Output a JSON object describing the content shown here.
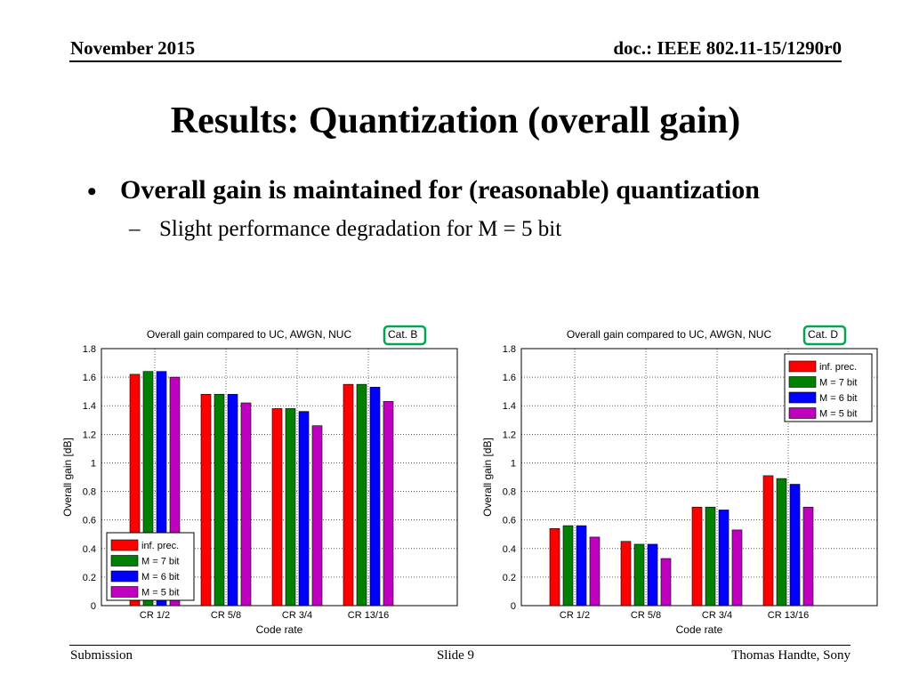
{
  "header": {
    "date": "November 2015",
    "doc": "doc.: IEEE 802.11-15/1290r0"
  },
  "slide": {
    "title": "Results: Quantization (overall gain)",
    "bullet_marker": "•",
    "bullet": "Overall gain is maintained for (reasonable) quantization",
    "sub_marker": "–",
    "sub_bullet": "Slight performance degradation for M = 5 bit"
  },
  "footer": {
    "left": "Submission",
    "center": "Slide 9",
    "right": "Thomas Handte, Sony"
  },
  "colors": {
    "inf": "#ff0000",
    "m7": "#008000",
    "m6": "#0000ff",
    "m5": "#bf00bf",
    "highlight": "#00a651"
  },
  "chart_data": [
    {
      "type": "bar",
      "title": "Overall gain compared to UC, AWGN, NUC",
      "title_highlight": "Cat. B",
      "xlabel": "Code rate",
      "ylabel": "Overall gain [dB]",
      "ylim": [
        0,
        1.8
      ],
      "yticks": [
        "0",
        "0.2",
        "0.4",
        "0.6",
        "0.8",
        "1",
        "1.2",
        "1.4",
        "1.6",
        "1.8"
      ],
      "categories": [
        "CR 1/2",
        "CR 5/8",
        "CR 3/4",
        "CR 13/16"
      ],
      "grid": true,
      "legend_position": "bottom-left",
      "series": [
        {
          "name": "inf. prec.",
          "color": "#ff0000",
          "values": [
            1.62,
            1.48,
            1.38,
            1.55
          ]
        },
        {
          "name": "M = 7 bit",
          "color": "#008000",
          "values": [
            1.64,
            1.48,
            1.38,
            1.55
          ]
        },
        {
          "name": "M = 6 bit",
          "color": "#0000ff",
          "values": [
            1.64,
            1.48,
            1.36,
            1.53
          ]
        },
        {
          "name": "M = 5 bit",
          "color": "#bf00bf",
          "values": [
            1.6,
            1.42,
            1.26,
            1.43
          ]
        }
      ]
    },
    {
      "type": "bar",
      "title": "Overall gain compared to UC, AWGN, NUC",
      "title_highlight": "Cat. D",
      "xlabel": "Code rate",
      "ylabel": "Overall gain [dB]",
      "ylim": [
        0,
        1.8
      ],
      "yticks": [
        "0",
        "0.2",
        "0.4",
        "0.6",
        "0.8",
        "1",
        "1.2",
        "1.4",
        "1.6",
        "1.8"
      ],
      "categories": [
        "CR 1/2",
        "CR 5/8",
        "CR 3/4",
        "CR 13/16"
      ],
      "grid": true,
      "legend_position": "top-right",
      "series": [
        {
          "name": "inf. prec.",
          "color": "#ff0000",
          "values": [
            0.54,
            0.45,
            0.69,
            0.91
          ]
        },
        {
          "name": "M = 7 bit",
          "color": "#008000",
          "values": [
            0.56,
            0.43,
            0.69,
            0.89
          ]
        },
        {
          "name": "M = 6 bit",
          "color": "#0000ff",
          "values": [
            0.56,
            0.43,
            0.67,
            0.85
          ]
        },
        {
          "name": "M = 5 bit",
          "color": "#bf00bf",
          "values": [
            0.48,
            0.33,
            0.53,
            0.69
          ]
        }
      ]
    }
  ]
}
